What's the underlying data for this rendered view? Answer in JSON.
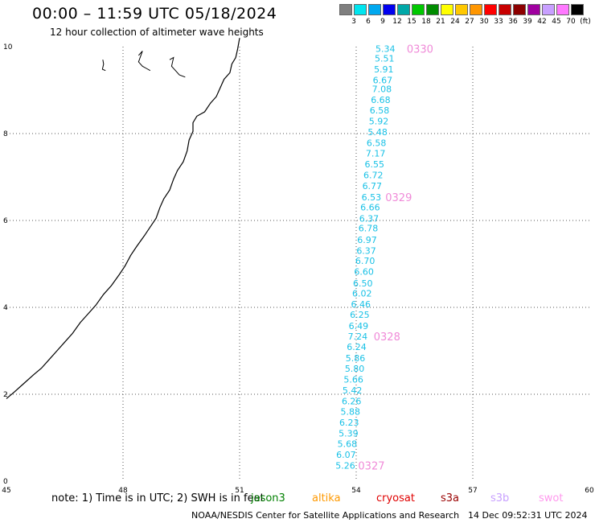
{
  "header": {
    "title": "00:00 – 11:59 UTC 05/18/2024",
    "subtitle": "12 hour collection of altimeter wave heights"
  },
  "legend": {
    "colors": [
      "#7f7f7f",
      "#00e5ef",
      "#00a8ef",
      "#0000ef",
      "#00a8a8",
      "#00c800",
      "#008c00",
      "#ffff00",
      "#ffc800",
      "#ff9600",
      "#ff0000",
      "#c80000",
      "#8c0000",
      "#a000a0",
      "#c8a0ff",
      "#ff78ff",
      "#000000"
    ],
    "labels": [
      "3",
      "6",
      "9",
      "12",
      "15",
      "18",
      "21",
      "24",
      "27",
      "30",
      "33",
      "36",
      "39",
      "42",
      "45",
      "70",
      "(ft)"
    ]
  },
  "axes": {
    "x_ticks": [
      "45",
      "48",
      "51",
      "54",
      "57",
      "60"
    ],
    "y_ticks": [
      "0",
      "2",
      "4",
      "6",
      "8",
      "10"
    ]
  },
  "map": {
    "point_color": "#19c1e6",
    "time_color": "#f08ad8",
    "coast_color": "#000000",
    "points": [
      {
        "lon": 54.75,
        "lat": 9.95,
        "value": "5.34"
      },
      {
        "lon": 54.73,
        "lat": 9.73,
        "value": "5.51"
      },
      {
        "lon": 54.71,
        "lat": 9.48,
        "value": "5.91"
      },
      {
        "lon": 54.68,
        "lat": 9.23,
        "value": "6.67"
      },
      {
        "lon": 54.66,
        "lat": 9.03,
        "value": "7.08"
      },
      {
        "lon": 54.63,
        "lat": 8.78,
        "value": "6.68"
      },
      {
        "lon": 54.6,
        "lat": 8.54,
        "value": "6.58"
      },
      {
        "lon": 54.58,
        "lat": 8.29,
        "value": "5.92"
      },
      {
        "lon": 54.55,
        "lat": 8.04,
        "value": "5.48"
      },
      {
        "lon": 54.52,
        "lat": 7.79,
        "value": "6.58"
      },
      {
        "lon": 54.5,
        "lat": 7.55,
        "value": "7.17"
      },
      {
        "lon": 54.47,
        "lat": 7.3,
        "value": "6.55"
      },
      {
        "lon": 54.44,
        "lat": 7.05,
        "value": "6.72"
      },
      {
        "lon": 54.41,
        "lat": 6.8,
        "value": "6.77"
      },
      {
        "lon": 54.39,
        "lat": 6.54,
        "value": "6.53"
      },
      {
        "lon": 54.36,
        "lat": 6.31,
        "value": "6.66"
      },
      {
        "lon": 54.33,
        "lat": 6.05,
        "value": "6.37"
      },
      {
        "lon": 54.31,
        "lat": 5.82,
        "value": "6.78"
      },
      {
        "lon": 54.28,
        "lat": 5.56,
        "value": "6.97"
      },
      {
        "lon": 54.26,
        "lat": 5.31,
        "value": "6.37"
      },
      {
        "lon": 54.23,
        "lat": 5.07,
        "value": "6.70"
      },
      {
        "lon": 54.2,
        "lat": 4.82,
        "value": "6.60"
      },
      {
        "lon": 54.17,
        "lat": 4.56,
        "value": "6.50"
      },
      {
        "lon": 54.15,
        "lat": 4.32,
        "value": "6.02"
      },
      {
        "lon": 54.12,
        "lat": 4.07,
        "value": "6.46"
      },
      {
        "lon": 54.09,
        "lat": 3.83,
        "value": "6.25"
      },
      {
        "lon": 54.06,
        "lat": 3.57,
        "value": "6.49"
      },
      {
        "lon": 54.04,
        "lat": 3.33,
        "value": "7.24"
      },
      {
        "lon": 54.01,
        "lat": 3.09,
        "value": "6.24"
      },
      {
        "lon": 53.98,
        "lat": 2.83,
        "value": "5.86"
      },
      {
        "lon": 53.96,
        "lat": 2.59,
        "value": "5.80"
      },
      {
        "lon": 53.93,
        "lat": 2.34,
        "value": "5.66"
      },
      {
        "lon": 53.9,
        "lat": 2.09,
        "value": "5.42"
      },
      {
        "lon": 53.88,
        "lat": 1.84,
        "value": "6.26"
      },
      {
        "lon": 53.85,
        "lat": 1.6,
        "value": "5.88"
      },
      {
        "lon": 53.82,
        "lat": 1.35,
        "value": "6.23"
      },
      {
        "lon": 53.8,
        "lat": 1.1,
        "value": "5.39"
      },
      {
        "lon": 53.77,
        "lat": 0.86,
        "value": "5.68"
      },
      {
        "lon": 53.74,
        "lat": 0.61,
        "value": "6.07"
      },
      {
        "lon": 53.72,
        "lat": 0.36,
        "value": "5.26"
      }
    ],
    "times": [
      {
        "lon": 55.3,
        "lat": 9.95,
        "label": "0330"
      },
      {
        "lon": 54.75,
        "lat": 6.54,
        "label": "0329"
      },
      {
        "lon": 54.45,
        "lat": 3.33,
        "label": "0328"
      },
      {
        "lon": 54.05,
        "lat": 0.36,
        "label": "0327"
      }
    ],
    "coastline": [
      [
        51.0,
        10.2
      ],
      [
        50.95,
        9.95
      ],
      [
        50.9,
        9.75
      ],
      [
        50.8,
        9.6
      ],
      [
        50.75,
        9.4
      ],
      [
        50.6,
        9.25
      ],
      [
        50.5,
        9.05
      ],
      [
        50.4,
        8.85
      ],
      [
        50.25,
        8.7
      ],
      [
        50.1,
        8.5
      ],
      [
        49.9,
        8.4
      ],
      [
        49.8,
        8.25
      ],
      [
        49.8,
        8.05
      ],
      [
        49.7,
        7.85
      ],
      [
        49.65,
        7.6
      ],
      [
        49.55,
        7.35
      ],
      [
        49.4,
        7.15
      ],
      [
        49.3,
        6.95
      ],
      [
        49.2,
        6.7
      ],
      [
        49.05,
        6.5
      ],
      [
        48.95,
        6.3
      ],
      [
        48.85,
        6.05
      ],
      [
        48.7,
        5.85
      ],
      [
        48.55,
        5.65
      ],
      [
        48.35,
        5.4
      ],
      [
        48.2,
        5.2
      ],
      [
        48.05,
        4.95
      ],
      [
        47.9,
        4.75
      ],
      [
        47.7,
        4.5
      ],
      [
        47.5,
        4.3
      ],
      [
        47.3,
        4.05
      ],
      [
        47.1,
        3.85
      ],
      [
        46.9,
        3.65
      ],
      [
        46.7,
        3.4
      ],
      [
        46.5,
        3.2
      ],
      [
        46.3,
        3.0
      ],
      [
        46.1,
        2.8
      ],
      [
        45.9,
        2.6
      ],
      [
        45.7,
        2.45
      ],
      [
        45.45,
        2.25
      ],
      [
        45.2,
        2.05
      ],
      [
        45.0,
        1.9
      ]
    ],
    "islands": [
      [
        [
          47.48,
          9.7
        ],
        [
          47.5,
          9.6
        ],
        [
          47.47,
          9.48
        ],
        [
          47.55,
          9.45
        ]
      ],
      [
        [
          48.4,
          9.8
        ],
        [
          48.5,
          9.9
        ],
        [
          48.4,
          9.65
        ],
        [
          48.5,
          9.55
        ],
        [
          48.6,
          9.5
        ],
        [
          48.7,
          9.45
        ]
      ],
      [
        [
          49.2,
          9.7
        ],
        [
          49.3,
          9.75
        ],
        [
          49.25,
          9.55
        ],
        [
          49.35,
          9.45
        ],
        [
          49.45,
          9.35
        ],
        [
          49.6,
          9.3
        ]
      ]
    ]
  },
  "footer": {
    "note": "note: 1) Time is in UTC; 2) SWH is in feet",
    "satellites": [
      {
        "name": "jason3",
        "color": "#008000"
      },
      {
        "name": "altika",
        "color": "#ff9900"
      },
      {
        "name": "cryosat",
        "color": "#e00000"
      },
      {
        "name": "s3a",
        "color": "#990000"
      },
      {
        "name": "s3b",
        "color": "#c8a0ff"
      },
      {
        "name": "swot",
        "color": "#ff99ee"
      }
    ],
    "credit": "NOAA/NESDIS Center for Satellite Applications and Research",
    "timestamp": "14 Dec 09:52:31 UTC 2024"
  }
}
